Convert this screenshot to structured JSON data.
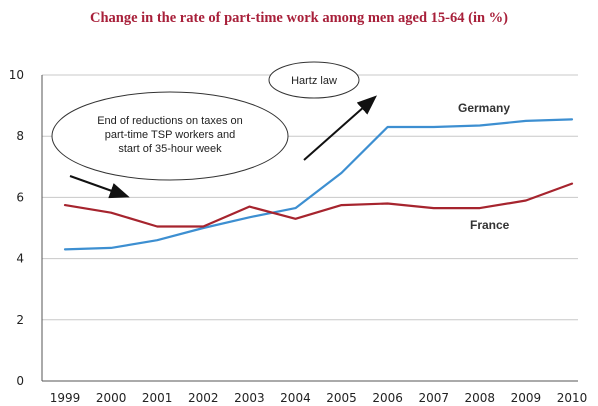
{
  "chart_data": {
    "type": "line",
    "title": "Change in the rate of part-time work among men aged 15-64 (in %)",
    "x": [
      "1999",
      "2000",
      "2001",
      "2002",
      "2003",
      "2004",
      "2005",
      "2006",
      "2007",
      "2008",
      "2009",
      "2010"
    ],
    "yticks": [
      "0",
      "2",
      "4",
      "6",
      "8",
      "10"
    ],
    "ylim": [
      0,
      10
    ],
    "grid": true,
    "series": [
      {
        "name": "Germany",
        "color": "#3d8fd1",
        "values": [
          4.3,
          4.35,
          4.6,
          5.0,
          5.35,
          5.65,
          6.8,
          8.3,
          8.3,
          8.35,
          8.5,
          8.55
        ]
      },
      {
        "name": "France",
        "color": "#a6242e",
        "values": [
          5.75,
          5.5,
          5.05,
          5.05,
          5.7,
          5.3,
          5.75,
          5.8,
          5.65,
          5.65,
          5.9,
          6.45
        ]
      }
    ],
    "annotations": [
      {
        "name": "taxes-note",
        "lines": [
          "End of reductions on taxes on",
          "part-time TSP workers and",
          "start of 35-hour week"
        ]
      },
      {
        "name": "hartz-note",
        "lines": [
          "Hartz law"
        ]
      }
    ]
  }
}
